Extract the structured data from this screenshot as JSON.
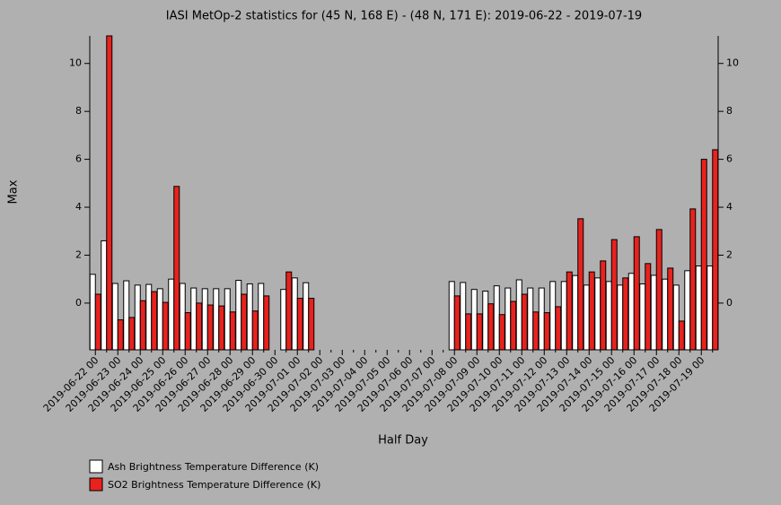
{
  "chart_data": {
    "type": "bar",
    "title": "IASI MetOp-2 statistics for (45 N, 168 E) - (48 N, 171 E): 2019-06-22 - 2019-07-19",
    "x_label": "Half Day",
    "y_label": "Max",
    "categories": [
      "2019-06-22 00",
      null,
      "2019-06-23 00",
      null,
      "2019-06-24 00",
      null,
      "2019-06-25 00",
      null,
      "2019-06-26 00",
      null,
      "2019-06-27 00",
      null,
      "2019-06-28 00",
      null,
      "2019-06-29 00",
      null,
      "2019-06-30 00",
      null,
      "2019-07-01 00",
      null,
      "2019-07-02 00",
      null,
      "2019-07-03 00",
      null,
      "2019-07-04 00",
      null,
      "2019-07-05 00",
      null,
      "2019-07-06 00",
      null,
      "2019-07-07 00",
      null,
      "2019-07-08 00",
      null,
      "2019-07-09 00",
      null,
      "2019-07-10 00",
      null,
      "2019-07-11 00",
      null,
      "2019-07-12 00",
      null,
      "2019-07-13 00",
      null,
      "2019-07-14 00",
      null,
      "2019-07-15 00",
      null,
      "2019-07-16 00",
      null,
      "2019-07-17 00",
      null,
      "2019-07-18 00",
      null,
      "2019-07-19 00",
      null
    ],
    "series": [
      {
        "name": "Ash Brightness Temperature Difference (K)",
        "color": "#ffffff",
        "values": [
          1.2,
          2.6,
          0.82,
          0.93,
          0.75,
          0.78,
          0.6,
          1.0,
          0.82,
          0.63,
          0.6,
          0.6,
          0.6,
          0.95,
          0.8,
          0.82,
          null,
          0.57,
          1.05,
          0.85,
          null,
          null,
          null,
          null,
          null,
          null,
          null,
          null,
          null,
          null,
          null,
          null,
          0.9,
          0.86,
          0.57,
          0.5,
          0.72,
          0.63,
          0.97,
          0.63,
          0.63,
          0.9,
          0.9,
          1.15,
          0.75,
          1.05,
          0.9,
          0.75,
          1.24,
          0.8,
          1.16,
          1.0,
          0.75,
          1.35,
          1.55,
          1.55
        ]
      },
      {
        "name": "SO2 Brightness Temperature Difference (K)",
        "color": "#e8221e",
        "values": [
          0.37,
          11.15,
          -0.7,
          -0.6,
          0.1,
          0.48,
          0.03,
          4.87,
          -0.4,
          0,
          -0.08,
          -0.12,
          -0.37,
          0.37,
          -0.33,
          0.3,
          null,
          1.3,
          0.2,
          0.2,
          null,
          null,
          null,
          null,
          null,
          null,
          null,
          null,
          null,
          null,
          null,
          null,
          0.3,
          -0.45,
          -0.45,
          -0.03,
          -0.48,
          0.07,
          0.37,
          -0.37,
          -0.4,
          -0.15,
          1.3,
          3.52,
          1.3,
          1.76,
          2.65,
          1.05,
          2.77,
          1.65,
          3.07,
          1.46,
          -0.75,
          3.93,
          6.0,
          6.4
        ]
      }
    ],
    "ylim": [
      -1.95,
      11.15
    ],
    "yticks": [
      0,
      2,
      4,
      6,
      8,
      10
    ]
  }
}
